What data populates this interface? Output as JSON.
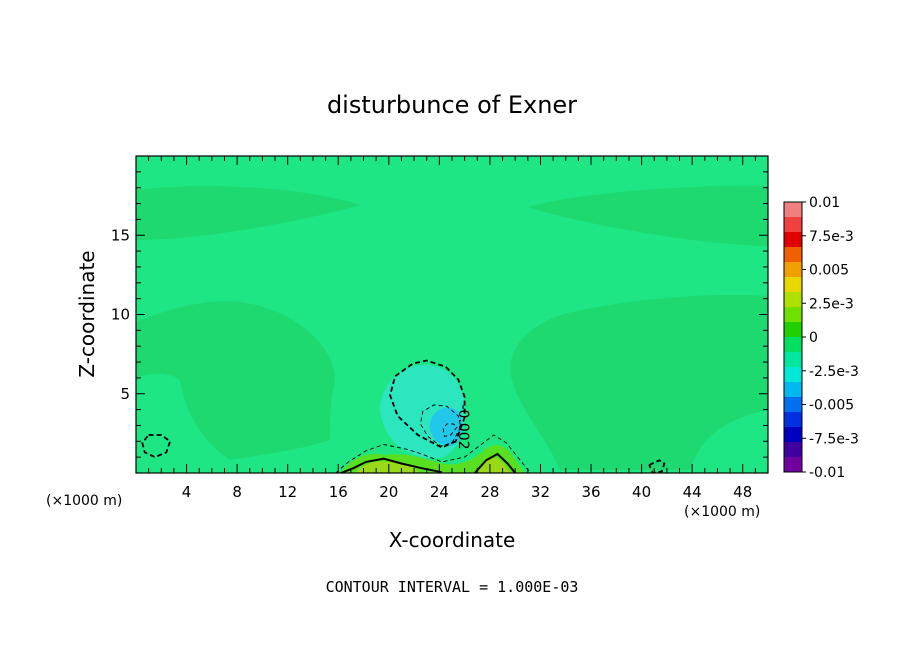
{
  "chart_data": {
    "type": "heatmap",
    "title": "disturbunce of Exner",
    "xlabel": "X-coordinate",
    "ylabel": "Z-coordinate",
    "x_unit": "(×1000 m)",
    "x_unit_right": "(×1000 m)",
    "xlim": [
      0,
      50
    ],
    "ylim": [
      0,
      20
    ],
    "x_ticks": [
      4,
      8,
      12,
      16,
      20,
      24,
      28,
      32,
      36,
      40,
      44,
      48
    ],
    "y_ticks": [
      5,
      10,
      15
    ],
    "footer": "CONTOUR INTERVAL = 1.000E-03",
    "contour_label": "-0.002",
    "colorbar": {
      "range": [
        -0.01,
        0.01
      ],
      "labels": [
        "0.01",
        "7.5e-3",
        "0.005",
        "2.5e-3",
        "0",
        "-2.5e-3",
        "-0.005",
        "-7.5e-3",
        "-0.01"
      ],
      "colors": [
        "#f08080",
        "#f04040",
        "#e00000",
        "#f06000",
        "#f0a000",
        "#e8d800",
        "#b0e000",
        "#70e000",
        "#20d000",
        "#00e060",
        "#00e8a0",
        "#00e8d8",
        "#00b8f0",
        "#0070f0",
        "#0030e0",
        "#0000c0",
        "#4000a0",
        "#7000a0"
      ]
    },
    "field_regions": [
      {
        "name": "background",
        "value": -0.0012
      },
      {
        "name": "upper-band-left",
        "value": -0.0006
      },
      {
        "name": "upper-band-right",
        "value": -0.0006
      },
      {
        "name": "middle-band",
        "value": -0.0004
      },
      {
        "name": "low-center",
        "value": -0.003
      },
      {
        "name": "low-core",
        "value": -0.004
      },
      {
        "name": "surface-ridge",
        "value": 0.001
      }
    ],
    "contours": [
      {
        "level": -0.002,
        "style": "dashed",
        "points": [
          [
            25.3,
            2.0
          ],
          [
            24.2,
            1.6
          ],
          [
            22.3,
            2.4
          ],
          [
            20.7,
            3.6
          ],
          [
            20.1,
            4.9
          ],
          [
            20.5,
            6.1
          ],
          [
            21.9,
            6.9
          ],
          [
            23.0,
            7.1
          ],
          [
            24.5,
            6.7
          ],
          [
            25.5,
            5.9
          ],
          [
            26.0,
            4.8
          ],
          [
            26.0,
            3.5
          ],
          [
            25.3,
            2.0
          ]
        ]
      },
      {
        "level": -0.003,
        "style": "dashed-thin",
        "points": [
          [
            25.7,
            2.9
          ],
          [
            25.0,
            1.9
          ],
          [
            24.1,
            1.7
          ],
          [
            23.1,
            2.3
          ],
          [
            22.5,
            3.1
          ],
          [
            22.7,
            3.9
          ],
          [
            23.6,
            4.3
          ],
          [
            24.6,
            4.2
          ],
          [
            25.5,
            3.6
          ],
          [
            25.7,
            2.9
          ]
        ]
      },
      {
        "level": -0.004,
        "style": "dashed-thin",
        "points": [
          [
            25.4,
            2.9
          ],
          [
            24.9,
            2.4
          ],
          [
            24.4,
            2.3
          ],
          [
            24.3,
            2.8
          ],
          [
            24.6,
            3.1
          ],
          [
            25.1,
            3.1
          ],
          [
            25.4,
            2.9
          ]
        ]
      },
      {
        "level": -0.002,
        "style": "dashed",
        "points": [
          [
            1.0,
            2.4
          ],
          [
            2.0,
            2.4
          ],
          [
            2.7,
            2.0
          ],
          [
            2.4,
            1.3
          ],
          [
            1.5,
            1.0
          ],
          [
            0.7,
            1.3
          ],
          [
            0.5,
            1.9
          ],
          [
            1.0,
            2.4
          ]
        ]
      },
      {
        "level": -0.002,
        "style": "dashed",
        "points": [
          [
            40.6,
            0.5
          ],
          [
            41.4,
            0.8
          ],
          [
            41.8,
            0.6
          ],
          [
            41.6,
            0.1
          ],
          [
            40.9,
            0.0
          ],
          [
            40.6,
            0.5
          ]
        ]
      },
      {
        "level": 0,
        "style": "dashed-thin",
        "points": [
          [
            15.8,
            0.0
          ],
          [
            16.8,
            0.7
          ],
          [
            18.2,
            1.4
          ],
          [
            19.6,
            1.8
          ],
          [
            21.4,
            1.5
          ],
          [
            22.6,
            1.2
          ],
          [
            24.2,
            0.7
          ],
          [
            26.0,
            1.0
          ],
          [
            27.3,
            1.8
          ],
          [
            28.3,
            2.4
          ],
          [
            29.3,
            1.9
          ],
          [
            30.4,
            0.8
          ],
          [
            31.2,
            0.0
          ]
        ]
      },
      {
        "level": 0.001,
        "style": "solid",
        "points": [
          [
            16.2,
            0.0
          ],
          [
            17.2,
            0.3
          ],
          [
            18.2,
            0.7
          ],
          [
            19.6,
            0.9
          ],
          [
            21.0,
            0.6
          ],
          [
            22.6,
            0.3
          ],
          [
            24.2,
            0.05
          ]
        ]
      },
      {
        "level": 0.001,
        "style": "solid",
        "points": [
          [
            26.8,
            0.0
          ],
          [
            27.7,
            0.8
          ],
          [
            28.6,
            1.2
          ],
          [
            29.4,
            0.6
          ],
          [
            30.0,
            0.0
          ]
        ]
      }
    ]
  }
}
